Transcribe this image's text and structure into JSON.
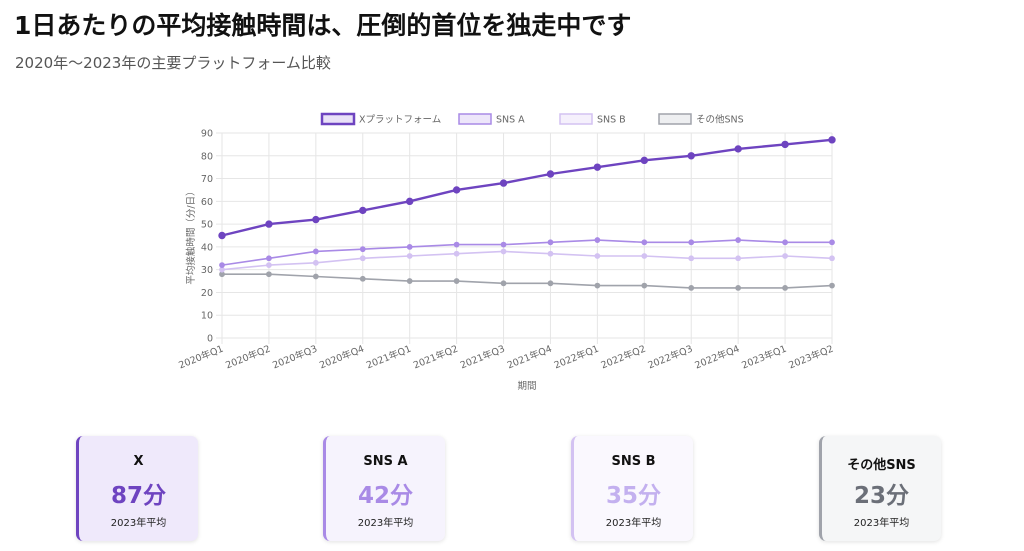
{
  "header": {
    "title": "1日あたりの平均接触時間は、圧倒的首位を独走中です",
    "subtitle": "2020年〜2023年の主要プラットフォーム比較"
  },
  "chart_data": {
    "type": "line",
    "xlabel": "期間",
    "ylabel": "平均接触時間（分/日）",
    "ylim": [
      0,
      90
    ],
    "yticks": [
      0,
      10,
      20,
      30,
      40,
      50,
      60,
      70,
      80,
      90
    ],
    "grid": true,
    "legend_position": "top",
    "categories": [
      "2020年Q1",
      "2020年Q2",
      "2020年Q3",
      "2020年Q4",
      "2021年Q1",
      "2021年Q2",
      "2021年Q3",
      "2021年Q4",
      "2022年Q1",
      "2022年Q2",
      "2022年Q3",
      "2022年Q4",
      "2023年Q1",
      "2023年Q2"
    ],
    "series": [
      {
        "name": "Xプラットフォーム",
        "color": "#6e44c0",
        "fill": "#e9e1f7",
        "values": [
          45,
          50,
          52,
          56,
          60,
          65,
          68,
          72,
          75,
          78,
          80,
          83,
          85,
          87
        ]
      },
      {
        "name": "SNS A",
        "color": "#a98ae6",
        "fill": "#ede6fa",
        "values": [
          32,
          35,
          38,
          39,
          40,
          41,
          41,
          42,
          43,
          42,
          42,
          43,
          42,
          42
        ]
      },
      {
        "name": "SNS B",
        "color": "#d3c2f2",
        "fill": "#f5f0fc",
        "values": [
          30,
          32,
          33,
          35,
          36,
          37,
          38,
          37,
          36,
          36,
          35,
          35,
          36,
          35
        ]
      },
      {
        "name": "その他SNS",
        "color": "#a0a3ab",
        "fill": "#eeeff1",
        "values": [
          28,
          28,
          27,
          26,
          25,
          25,
          24,
          24,
          23,
          23,
          22,
          22,
          22,
          23
        ]
      }
    ]
  },
  "cards": [
    {
      "name": "X",
      "value": "87分",
      "note": "2023年平均",
      "accent": "#6e44c0",
      "bg": "#efe9fb",
      "value_color": "#6e44c0"
    },
    {
      "name": "SNS A",
      "value": "42分",
      "note": "2023年平均",
      "accent": "#a98ae6",
      "bg": "#f6f3fd",
      "value_color": "#a98ae6"
    },
    {
      "name": "SNS B",
      "value": "35分",
      "note": "2023年平均",
      "accent": "#d3c2f2",
      "bg": "#faf8fe",
      "value_color": "#c3b0ef"
    },
    {
      "name": "その他SNS",
      "value": "23分",
      "note": "2023年平均",
      "accent": "#a0a3ab",
      "bg": "#f5f6f7",
      "value_color": "#6b6f78"
    }
  ]
}
